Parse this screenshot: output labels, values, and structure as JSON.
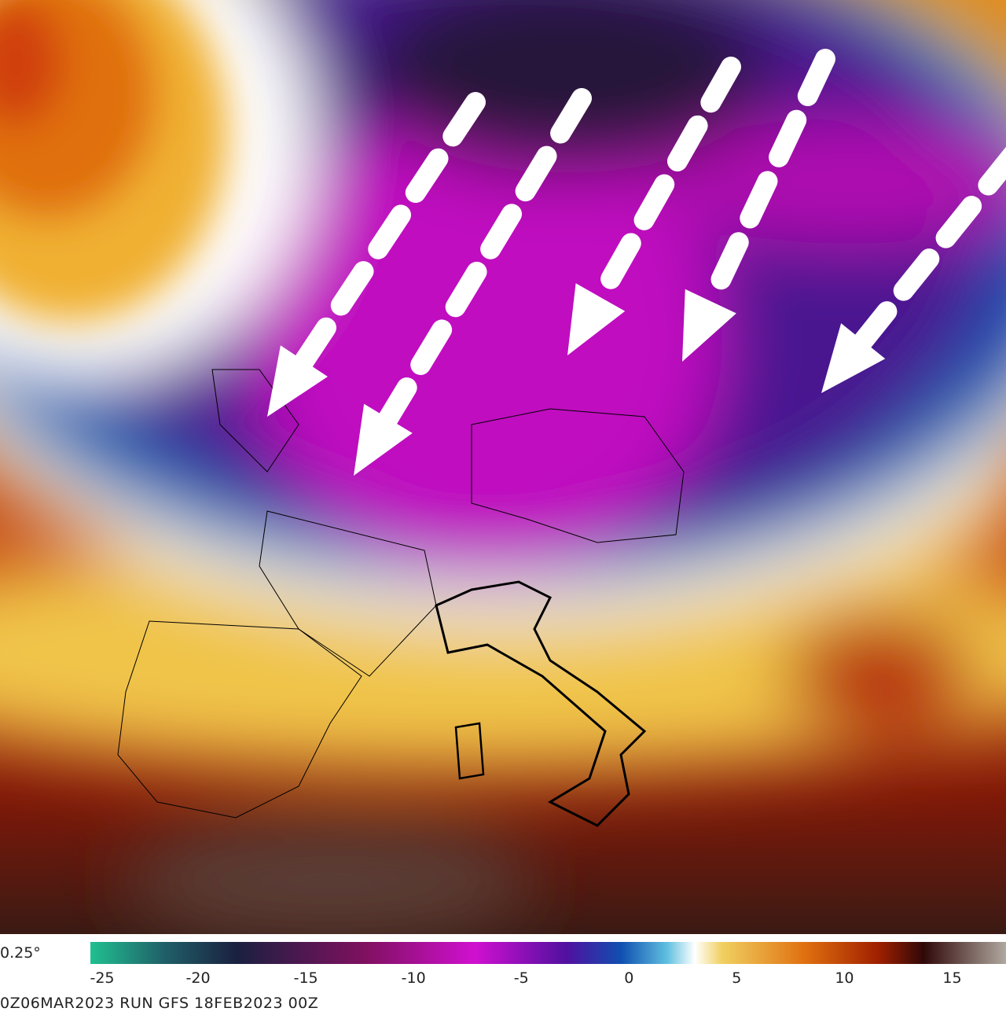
{
  "map": {
    "resolution_label": "0.25°",
    "footer": "0Z06MAR2023 RUN GFS 18FEB2023 00Z",
    "colorbar": {
      "lim": [
        -25,
        17.5
      ],
      "ticks": [
        -25,
        -20,
        -15,
        -10,
        -5,
        0,
        5,
        10,
        15
      ]
    }
  }
}
